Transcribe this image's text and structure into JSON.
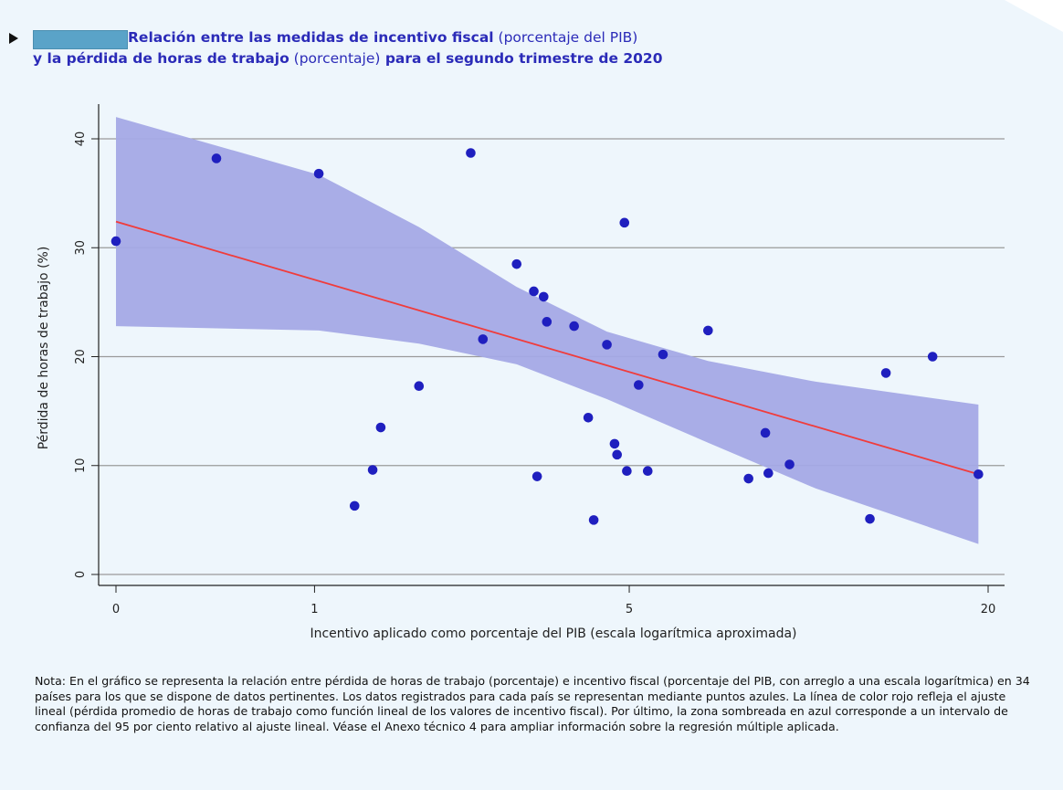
{
  "title": {
    "line1_bold": "Relación entre las medidas de incentivo fiscal",
    "line1_regular": " (porcentaje del PIB)",
    "line2_bold_a": "y la pérdida de horas de trabajo",
    "line2_regular": " (porcentaje)",
    "line2_bold_b": " para el segundo trimestre de 2020"
  },
  "note": "Nota: En el gráfico se representa la relación entre pérdida de horas de trabajo (porcentaje) e incentivo fiscal (porcentaje del PIB, con arreglo a una escala logarítmica) en 34 países para los que se dispone de datos pertinentes. Los datos registrados para cada país se representan mediante puntos azules. La línea de color rojo refleja el ajuste lineal (pérdida promedio de horas de trabajo como función lineal de los valores de incentivo fiscal). Por último, la zona sombreada en azul corresponde a un intervalo de confianza del 95 por ciento relativo al ajuste lineal. Véase el Anexo técnico 4 para ampliar información sobre la regresión múltiple aplicada.",
  "colors": {
    "panel_bg": "#eef6fc",
    "title": "#2b2bb8",
    "points": "#1f1fbf",
    "fit_line": "#f03c3c",
    "ci_band": "#a4a9e6",
    "gridline": "#9a9a9a",
    "figure_tag": "#5aa3c8"
  },
  "chart_data": {
    "type": "scatter",
    "xlabel": "Incentivo aplicado como porcentaje del PIB (escala logarítmica aproximada)",
    "ylabel": "Pérdida de horas de trabajo (%)",
    "x_scale": "log(1+x)",
    "x_ticks": [
      0,
      1,
      5,
      20
    ],
    "y_ticks": [
      0,
      10,
      20,
      30,
      40
    ],
    "xlim": [
      0,
      20
    ],
    "ylim": [
      0,
      42
    ],
    "grid": "horizontal",
    "legend": "none",
    "points": [
      {
        "x": 0,
        "y": 30.6
      },
      {
        "x": 0.42,
        "y": 38.2
      },
      {
        "x": 1.03,
        "y": 36.8
      },
      {
        "x": 1.3,
        "y": 6.3
      },
      {
        "x": 1.45,
        "y": 9.6
      },
      {
        "x": 1.52,
        "y": 13.5
      },
      {
        "x": 1.88,
        "y": 17.3
      },
      {
        "x": 2.45,
        "y": 38.7
      },
      {
        "x": 2.6,
        "y": 21.6
      },
      {
        "x": 3.05,
        "y": 28.5
      },
      {
        "x": 3.3,
        "y": 26
      },
      {
        "x": 3.35,
        "y": 9
      },
      {
        "x": 3.45,
        "y": 25.5
      },
      {
        "x": 3.5,
        "y": 23.2
      },
      {
        "x": 3.95,
        "y": 22.8
      },
      {
        "x": 4.2,
        "y": 14.4
      },
      {
        "x": 4.3,
        "y": 5
      },
      {
        "x": 4.55,
        "y": 21.1
      },
      {
        "x": 4.7,
        "y": 12
      },
      {
        "x": 4.75,
        "y": 11
      },
      {
        "x": 4.9,
        "y": 32.3
      },
      {
        "x": 4.95,
        "y": 9.5
      },
      {
        "x": 5.2,
        "y": 17.4
      },
      {
        "x": 5.4,
        "y": 9.5
      },
      {
        "x": 5.75,
        "y": 20.2
      },
      {
        "x": 6.9,
        "y": 22.4
      },
      {
        "x": 8.1,
        "y": 8.8
      },
      {
        "x": 8.65,
        "y": 13
      },
      {
        "x": 8.75,
        "y": 9.3
      },
      {
        "x": 9.5,
        "y": 10.1
      },
      {
        "x": 12.9,
        "y": 5.1
      },
      {
        "x": 13.7,
        "y": 18.5
      },
      {
        "x": 16.3,
        "y": 20
      },
      {
        "x": 19.3,
        "y": 9.2
      }
    ],
    "fit_line": [
      {
        "x": 0,
        "y": 32.4
      },
      {
        "x": 19.3,
        "y": 9.2
      }
    ],
    "confidence_band": {
      "x": [
        0,
        1.03,
        1.88,
        3.05,
        4.55,
        6.9,
        10.5,
        19.3
      ],
      "upper": [
        42,
        36.7,
        31.9,
        26.4,
        22.3,
        19.6,
        17.7,
        15.6
      ],
      "lower": [
        22.8,
        22.4,
        21.2,
        19.3,
        16.1,
        12.1,
        7.9,
        2.8
      ]
    }
  }
}
